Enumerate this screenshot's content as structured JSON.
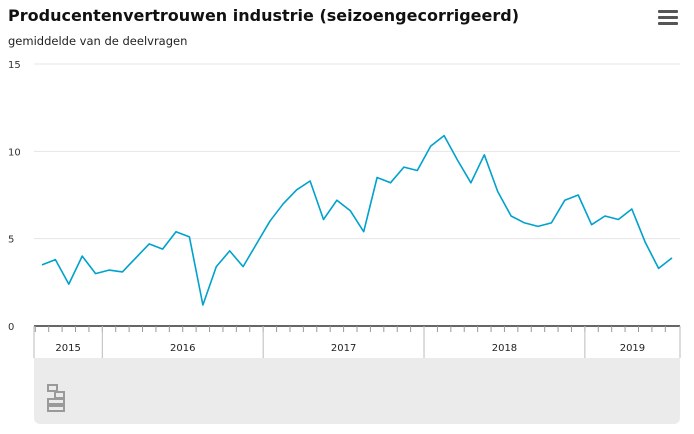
{
  "header": {
    "title": "Producentenvertrouwen industrie (seizoengecorrigeerd)",
    "subtitle": "gemiddelde van de deelvragen"
  },
  "icons": {
    "menu": "hamburger-menu-icon",
    "logo": "cbs-logo-icon"
  },
  "colors": {
    "line": "#00A1CD",
    "grid": "#e6e6e6",
    "axis": "#333333",
    "band": "#ebebeb"
  },
  "chart_data": {
    "type": "line",
    "title": "Producentenvertrouwen industrie (seizoengecorrigeerd)",
    "subtitle": "gemiddelde van de deelvragen",
    "ylim": [
      0,
      15
    ],
    "yticks": [
      "0",
      "5",
      "10",
      "15"
    ],
    "grid": true,
    "years": [
      "2015",
      "2016",
      "2017",
      "2018",
      "2019"
    ],
    "months_per_year": [
      5,
      12,
      12,
      12,
      7
    ],
    "series": [
      {
        "values": [
          3.5,
          3.8,
          2.4,
          4.0,
          3.0,
          3.2,
          3.1,
          3.9,
          4.7,
          4.4,
          5.4,
          5.1,
          1.2,
          3.4,
          4.3,
          3.4,
          4.7,
          6.0,
          7.0,
          7.8,
          8.3,
          6.1,
          7.2,
          6.6,
          5.4,
          8.5,
          8.2,
          9.1,
          8.9,
          10.3,
          10.9,
          9.5,
          8.2,
          9.8,
          7.7,
          6.3,
          5.9,
          5.7,
          5.9,
          7.2,
          7.5,
          5.8,
          6.3,
          6.1,
          6.7,
          4.8,
          3.3,
          3.9
        ]
      }
    ]
  }
}
